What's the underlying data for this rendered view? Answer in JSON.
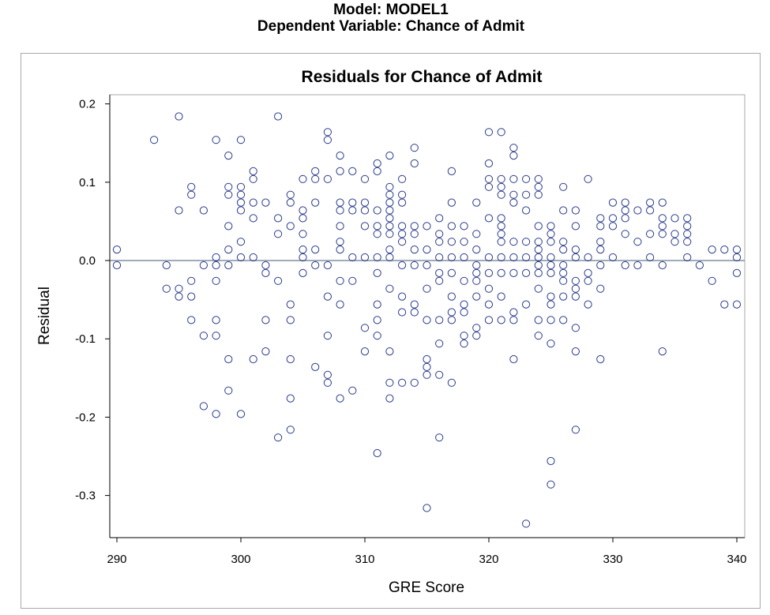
{
  "header": {
    "line1": "Model: MODEL1",
    "line2": "Dependent Variable: Chance of Admit"
  },
  "colors": {
    "marker": "#2b3b8c",
    "reference_line": "#8090a0",
    "axis": "#000000",
    "frame": "#a9a9a9"
  },
  "chart_data": {
    "type": "scatter",
    "title": "Residuals for Chance of Admit",
    "xlabel": "GRE Score",
    "ylabel": "Residual",
    "xlim": [
      290,
      340
    ],
    "ylim": [
      -0.35,
      0.21
    ],
    "xticks": [
      290,
      300,
      310,
      320,
      330,
      340
    ],
    "xtick_labels": [
      "290",
      "300",
      "310",
      "320",
      "330",
      "340"
    ],
    "yticks": [
      0.2,
      0.1,
      0.0,
      -0.1,
      -0.2,
      -0.3
    ],
    "ytick_labels": [
      "0.2",
      "0.1",
      "0.0",
      "-0.1",
      "-0.2",
      "-0.3"
    ],
    "reference_line_y": 0.0,
    "grid": false,
    "legend": "none",
    "marker": "open-circle",
    "points": [
      [
        290,
        0.014
      ],
      [
        290,
        -0.006
      ],
      [
        293,
        0.154
      ],
      [
        294,
        -0.006
      ],
      [
        294,
        -0.036
      ],
      [
        295,
        0.184
      ],
      [
        295,
        0.064
      ],
      [
        295,
        -0.036
      ],
      [
        295,
        -0.046
      ],
      [
        296,
        0.094
      ],
      [
        296,
        0.084
      ],
      [
        296,
        -0.026
      ],
      [
        296,
        -0.046
      ],
      [
        296,
        -0.076
      ],
      [
        297,
        0.064
      ],
      [
        297,
        -0.006
      ],
      [
        297,
        -0.096
      ],
      [
        297,
        -0.186
      ],
      [
        298,
        0.154
      ],
      [
        298,
        0.004
      ],
      [
        298,
        -0.006
      ],
      [
        298,
        -0.026
      ],
      [
        298,
        -0.076
      ],
      [
        298,
        -0.096
      ],
      [
        298,
        -0.196
      ],
      [
        299,
        0.134
      ],
      [
        299,
        0.094
      ],
      [
        299,
        0.084
      ],
      [
        299,
        0.044
      ],
      [
        299,
        0.014
      ],
      [
        299,
        -0.006
      ],
      [
        299,
        -0.126
      ],
      [
        299,
        -0.166
      ],
      [
        300,
        0.154
      ],
      [
        300,
        0.094
      ],
      [
        300,
        0.084
      ],
      [
        300,
        0.074
      ],
      [
        300,
        0.064
      ],
      [
        300,
        0.024
      ],
      [
        300,
        0.004
      ],
      [
        300,
        -0.196
      ],
      [
        301,
        0.114
      ],
      [
        301,
        0.104
      ],
      [
        301,
        0.074
      ],
      [
        301,
        0.054
      ],
      [
        301,
        0.004
      ],
      [
        301,
        -0.126
      ],
      [
        302,
        0.074
      ],
      [
        302,
        -0.006
      ],
      [
        302,
        -0.016
      ],
      [
        302,
        -0.076
      ],
      [
        302,
        -0.116
      ],
      [
        303,
        0.184
      ],
      [
        303,
        0.054
      ],
      [
        303,
        0.034
      ],
      [
        303,
        -0.026
      ],
      [
        303,
        -0.226
      ],
      [
        304,
        0.084
      ],
      [
        304,
        0.074
      ],
      [
        304,
        0.044
      ],
      [
        304,
        -0.056
      ],
      [
        304,
        -0.076
      ],
      [
        304,
        -0.126
      ],
      [
        304,
        -0.176
      ],
      [
        304,
        -0.216
      ],
      [
        305,
        0.104
      ],
      [
        305,
        0.064
      ],
      [
        305,
        0.054
      ],
      [
        305,
        0.034
      ],
      [
        305,
        0.014
      ],
      [
        305,
        0.004
      ],
      [
        305,
        -0.016
      ],
      [
        306,
        0.114
      ],
      [
        306,
        0.104
      ],
      [
        306,
        0.074
      ],
      [
        306,
        0.014
      ],
      [
        306,
        -0.006
      ],
      [
        306,
        -0.136
      ],
      [
        307,
        0.164
      ],
      [
        307,
        0.154
      ],
      [
        307,
        0.104
      ],
      [
        307,
        -0.006
      ],
      [
        307,
        -0.046
      ],
      [
        307,
        -0.096
      ],
      [
        307,
        -0.146
      ],
      [
        307,
        -0.156
      ],
      [
        308,
        0.134
      ],
      [
        308,
        0.114
      ],
      [
        308,
        0.074
      ],
      [
        308,
        0.064
      ],
      [
        308,
        0.044
      ],
      [
        308,
        0.024
      ],
      [
        308,
        0.014
      ],
      [
        308,
        -0.026
      ],
      [
        308,
        -0.056
      ],
      [
        308,
        -0.176
      ],
      [
        309,
        0.114
      ],
      [
        309,
        0.074
      ],
      [
        309,
        0.064
      ],
      [
        309,
        0.004
      ],
      [
        309,
        -0.026
      ],
      [
        309,
        -0.166
      ],
      [
        310,
        0.104
      ],
      [
        310,
        0.074
      ],
      [
        310,
        0.064
      ],
      [
        310,
        0.044
      ],
      [
        310,
        0.004
      ],
      [
        310,
        -0.086
      ],
      [
        310,
        -0.116
      ],
      [
        311,
        0.124
      ],
      [
        311,
        0.114
      ],
      [
        311,
        0.064
      ],
      [
        311,
        0.044
      ],
      [
        311,
        0.034
      ],
      [
        311,
        0.004
      ],
      [
        311,
        -0.016
      ],
      [
        311,
        -0.056
      ],
      [
        311,
        -0.076
      ],
      [
        311,
        -0.096
      ],
      [
        311,
        -0.246
      ],
      [
        312,
        0.134
      ],
      [
        312,
        0.094
      ],
      [
        312,
        0.084
      ],
      [
        312,
        0.074
      ],
      [
        312,
        0.064
      ],
      [
        312,
        0.054
      ],
      [
        312,
        0.044
      ],
      [
        312,
        0.034
      ],
      [
        312,
        0.014
      ],
      [
        312,
        0.004
      ],
      [
        312,
        -0.036
      ],
      [
        312,
        -0.116
      ],
      [
        312,
        -0.156
      ],
      [
        312,
        -0.176
      ],
      [
        313,
        0.104
      ],
      [
        313,
        0.084
      ],
      [
        313,
        0.074
      ],
      [
        313,
        0.044
      ],
      [
        313,
        0.034
      ],
      [
        313,
        0.024
      ],
      [
        313,
        -0.006
      ],
      [
        313,
        -0.046
      ],
      [
        313,
        -0.066
      ],
      [
        313,
        -0.156
      ],
      [
        314,
        0.144
      ],
      [
        314,
        0.124
      ],
      [
        314,
        0.044
      ],
      [
        314,
        0.034
      ],
      [
        314,
        0.014
      ],
      [
        314,
        -0.006
      ],
      [
        314,
        -0.056
      ],
      [
        314,
        -0.066
      ],
      [
        314,
        -0.156
      ],
      [
        315,
        0.044
      ],
      [
        315,
        0.014
      ],
      [
        315,
        -0.006
      ],
      [
        315,
        -0.036
      ],
      [
        315,
        -0.076
      ],
      [
        315,
        -0.126
      ],
      [
        315,
        -0.136
      ],
      [
        315,
        -0.146
      ],
      [
        315,
        -0.316
      ],
      [
        316,
        0.054
      ],
      [
        316,
        0.034
      ],
      [
        316,
        0.024
      ],
      [
        316,
        0.004
      ],
      [
        316,
        -0.016
      ],
      [
        316,
        -0.026
      ],
      [
        316,
        -0.076
      ],
      [
        316,
        -0.106
      ],
      [
        316,
        -0.146
      ],
      [
        316,
        -0.226
      ],
      [
        317,
        0.114
      ],
      [
        317,
        0.074
      ],
      [
        317,
        0.044
      ],
      [
        317,
        0.024
      ],
      [
        317,
        0.004
      ],
      [
        317,
        -0.016
      ],
      [
        317,
        -0.046
      ],
      [
        317,
        -0.066
      ],
      [
        317,
        -0.076
      ],
      [
        317,
        -0.156
      ],
      [
        318,
        0.044
      ],
      [
        318,
        0.024
      ],
      [
        318,
        0.004
      ],
      [
        318,
        -0.026
      ],
      [
        318,
        -0.056
      ],
      [
        318,
        -0.066
      ],
      [
        318,
        -0.096
      ],
      [
        318,
        -0.106
      ],
      [
        319,
        0.074
      ],
      [
        319,
        0.034
      ],
      [
        319,
        0.014
      ],
      [
        319,
        -0.006
      ],
      [
        319,
        -0.016
      ],
      [
        319,
        -0.026
      ],
      [
        319,
        -0.046
      ],
      [
        319,
        -0.086
      ],
      [
        319,
        -0.096
      ],
      [
        320,
        0.164
      ],
      [
        320,
        0.124
      ],
      [
        320,
        0.104
      ],
      [
        320,
        0.094
      ],
      [
        320,
        0.054
      ],
      [
        320,
        0.004
      ],
      [
        320,
        -0.016
      ],
      [
        320,
        -0.036
      ],
      [
        320,
        -0.056
      ],
      [
        320,
        -0.076
      ],
      [
        321,
        0.164
      ],
      [
        321,
        0.104
      ],
      [
        321,
        0.094
      ],
      [
        321,
        0.084
      ],
      [
        321,
        0.054
      ],
      [
        321,
        0.044
      ],
      [
        321,
        0.034
      ],
      [
        321,
        0.024
      ],
      [
        321,
        0.004
      ],
      [
        321,
        -0.016
      ],
      [
        321,
        -0.046
      ],
      [
        321,
        -0.076
      ],
      [
        322,
        0.144
      ],
      [
        322,
        0.134
      ],
      [
        322,
        0.104
      ],
      [
        322,
        0.084
      ],
      [
        322,
        0.074
      ],
      [
        322,
        0.024
      ],
      [
        322,
        0.004
      ],
      [
        322,
        -0.016
      ],
      [
        322,
        -0.066
      ],
      [
        322,
        -0.076
      ],
      [
        322,
        -0.126
      ],
      [
        323,
        0.104
      ],
      [
        323,
        0.084
      ],
      [
        323,
        0.064
      ],
      [
        323,
        0.024
      ],
      [
        323,
        0.004
      ],
      [
        323,
        -0.016
      ],
      [
        323,
        -0.056
      ],
      [
        323,
        -0.336
      ],
      [
        324,
        0.104
      ],
      [
        324,
        0.094
      ],
      [
        324,
        0.084
      ],
      [
        324,
        0.044
      ],
      [
        324,
        0.024
      ],
      [
        324,
        0.014
      ],
      [
        324,
        0.004
      ],
      [
        324,
        -0.006
      ],
      [
        324,
        -0.016
      ],
      [
        324,
        -0.036
      ],
      [
        324,
        -0.076
      ],
      [
        324,
        -0.096
      ],
      [
        325,
        0.044
      ],
      [
        325,
        0.034
      ],
      [
        325,
        0.024
      ],
      [
        325,
        0.004
      ],
      [
        325,
        -0.006
      ],
      [
        325,
        -0.016
      ],
      [
        325,
        -0.046
      ],
      [
        325,
        -0.056
      ],
      [
        325,
        -0.076
      ],
      [
        325,
        -0.106
      ],
      [
        325,
        -0.256
      ],
      [
        325,
        -0.286
      ],
      [
        326,
        0.094
      ],
      [
        326,
        0.064
      ],
      [
        326,
        0.024
      ],
      [
        326,
        0.014
      ],
      [
        326,
        -0.006
      ],
      [
        326,
        -0.016
      ],
      [
        326,
        -0.026
      ],
      [
        326,
        -0.046
      ],
      [
        326,
        -0.076
      ],
      [
        327,
        0.064
      ],
      [
        327,
        0.044
      ],
      [
        327,
        0.014
      ],
      [
        327,
        0.004
      ],
      [
        327,
        -0.026
      ],
      [
        327,
        -0.036
      ],
      [
        327,
        -0.046
      ],
      [
        327,
        -0.086
      ],
      [
        327,
        -0.116
      ],
      [
        327,
        -0.216
      ],
      [
        328,
        0.104
      ],
      [
        328,
        0.004
      ],
      [
        328,
        -0.016
      ],
      [
        328,
        -0.026
      ],
      [
        328,
        -0.056
      ],
      [
        329,
        0.054
      ],
      [
        329,
        0.044
      ],
      [
        329,
        0.024
      ],
      [
        329,
        0.014
      ],
      [
        329,
        -0.006
      ],
      [
        329,
        -0.036
      ],
      [
        329,
        -0.126
      ],
      [
        330,
        0.074
      ],
      [
        330,
        0.054
      ],
      [
        330,
        0.044
      ],
      [
        330,
        0.004
      ],
      [
        331,
        0.074
      ],
      [
        331,
        0.064
      ],
      [
        331,
        0.054
      ],
      [
        331,
        0.034
      ],
      [
        331,
        -0.006
      ],
      [
        332,
        0.064
      ],
      [
        332,
        0.024
      ],
      [
        332,
        -0.006
      ],
      [
        333,
        0.074
      ],
      [
        333,
        0.064
      ],
      [
        333,
        0.034
      ],
      [
        333,
        0.004
      ],
      [
        334,
        0.074
      ],
      [
        334,
        0.054
      ],
      [
        334,
        0.044
      ],
      [
        334,
        0.034
      ],
      [
        334,
        -0.006
      ],
      [
        334,
        -0.116
      ],
      [
        335,
        0.054
      ],
      [
        335,
        0.034
      ],
      [
        335,
        0.024
      ],
      [
        336,
        0.054
      ],
      [
        336,
        0.044
      ],
      [
        336,
        0.034
      ],
      [
        336,
        0.024
      ],
      [
        336,
        0.004
      ],
      [
        337,
        -0.006
      ],
      [
        338,
        0.014
      ],
      [
        338,
        -0.026
      ],
      [
        339,
        0.014
      ],
      [
        339,
        -0.056
      ],
      [
        340,
        0.014
      ],
      [
        340,
        0.004
      ],
      [
        340,
        -0.016
      ],
      [
        340,
        -0.056
      ]
    ]
  }
}
